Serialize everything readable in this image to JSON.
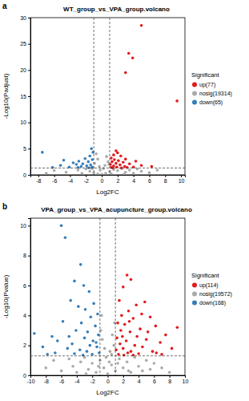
{
  "chart_data": [
    {
      "type": "scatter",
      "panel_label": "a",
      "title": "WT_group_vs_VPA_group.volcano",
      "x_label": "Log2FC",
      "y_label": "-Log10(Padjust)",
      "legend_title": "Significant",
      "legend": "right",
      "xlim": [
        -9,
        10.5
      ],
      "xticks": [
        -8,
        -6,
        -4,
        -2,
        0,
        2,
        4,
        6,
        8,
        10
      ],
      "ylim": [
        0,
        30
      ],
      "yticks": [
        0,
        5,
        10,
        15,
        20,
        25,
        30
      ],
      "thresholds": {
        "x": [
          -1,
          1
        ],
        "y": 1.3
      },
      "series": [
        {
          "name": "up(77)",
          "color": "#e41a1c",
          "x": [
            5.0,
            3.4,
            3.9,
            3.0,
            9.5,
            1.8,
            2.0,
            1.5,
            2.4,
            1.2,
            3.0,
            1.6,
            2.1,
            4.3,
            1.3,
            2.7,
            1.8,
            3.5,
            1.1,
            2.3,
            5.0,
            1.5,
            2.9,
            1.9,
            4.0,
            1.2,
            3.2,
            6.3,
            2.5,
            1.4
          ],
          "values": [
            28.5,
            23.2,
            22.3,
            19.5,
            14.1,
            4.6,
            4.2,
            3.8,
            3.6,
            3.2,
            3.0,
            2.9,
            2.7,
            2.6,
            2.5,
            2.4,
            2.2,
            2.1,
            2.0,
            1.9,
            1.8,
            1.7,
            1.6,
            1.5,
            1.5,
            1.4,
            1.4,
            1.6,
            1.35,
            1.35
          ]
        },
        {
          "name": "nosig(19314)",
          "color": "#aaaaaa",
          "x": [
            -0.7,
            -0.5,
            0.6,
            0.8,
            -0.9,
            0.4,
            -0.3,
            0.9,
            -6,
            -4.5,
            -3,
            -2,
            -1.5,
            -1,
            -0.5,
            0,
            0.5,
            1,
            1.5,
            2,
            2.5,
            3,
            3.5,
            4,
            4.5,
            5,
            6,
            7,
            -7,
            -2.5,
            1.2,
            -0.2,
            0.2,
            -1.2,
            2.8
          ],
          "values": [
            4.0,
            3.0,
            3.5,
            2.5,
            2.2,
            1.8,
            1.6,
            2.0,
            0.8,
            0.5,
            0.9,
            1.1,
            0.7,
            0.4,
            0.2,
            0.1,
            0.3,
            0.6,
            1.0,
            0.8,
            1.2,
            0.5,
            0.9,
            0.3,
            1.1,
            0.7,
            0.4,
            0.9,
            0.3,
            0.3,
            0.2,
            0.9,
            1.2,
            1.2,
            0.1
          ]
        },
        {
          "name": "down(65)",
          "color": "#377eb8",
          "x": [
            -7.5,
            -4.8,
            -3.6,
            -1.3,
            -1.1,
            -1.5,
            -2.1,
            -1.2,
            -2.9,
            -1.7,
            -3.2,
            -2.4,
            -1.4,
            -5.2,
            -1.9,
            -2.6,
            -1.2,
            -4.1,
            -3.0,
            -1.6,
            -6.2
          ],
          "values": [
            4.3,
            2.8,
            2.3,
            5.0,
            4.3,
            3.6,
            3.1,
            2.9,
            2.6,
            2.5,
            2.0,
            2.1,
            1.9,
            1.8,
            1.7,
            1.6,
            1.5,
            1.5,
            1.4,
            1.35,
            1.4
          ]
        }
      ]
    },
    {
      "type": "scatter",
      "panel_label": "b",
      "title": "VPA_group_vs_VPA_acupuncture_group.volcano",
      "x_label": "Log2FC",
      "y_label": "-Log10(Pvalue)",
      "legend_title": "Significant",
      "legend": "right",
      "xlim": [
        -10,
        10
      ],
      "xticks": [
        -10,
        -8,
        -6,
        -4,
        -2,
        0,
        2,
        4,
        6,
        8,
        10
      ],
      "ylim": [
        0,
        10.5
      ],
      "yticks": [
        0,
        2,
        4,
        6,
        8,
        10
      ],
      "thresholds": {
        "x": [
          -1,
          1
        ],
        "y": 1.3
      },
      "series": [
        {
          "name": "up(114)",
          "color": "#e41a1c",
          "x": [
            2.5,
            3.0,
            2.0,
            4.8,
            1.5,
            3.7,
            2.7,
            1.8,
            5.5,
            3.3,
            1.3,
            2.2,
            6.2,
            9.0,
            4.2,
            1.7,
            2.9,
            7.5,
            3.8,
            1.2,
            5.0,
            2.4,
            6.8,
            1.6,
            3.5,
            4.5,
            2.0,
            8.3,
            1.1,
            3.0,
            5.8,
            2.6,
            4.0,
            1.4,
            7.0,
            2.1,
            3.3,
            6.3,
            5.2,
            1.9,
            2.8,
            4.4
          ],
          "values": [
            6.7,
            6.4,
            5.9,
            4.9,
            5.0,
            4.7,
            4.3,
            4.0,
            3.9,
            3.8,
            3.5,
            3.4,
            3.3,
            3.2,
            3.1,
            3.0,
            2.9,
            2.7,
            2.6,
            2.5,
            2.4,
            2.3,
            2.2,
            2.1,
            2.0,
            1.9,
            1.8,
            1.8,
            1.7,
            1.6,
            1.6,
            1.5,
            1.45,
            1.4,
            1.4,
            1.35,
            1.35,
            1.5,
            2.9,
            2.6,
            3.6,
            4.1
          ]
        },
        {
          "name": "nosig(19572)",
          "color": "#aaaaaa",
          "x": [
            -0.9,
            -0.7,
            0.6,
            0.8,
            -0.4,
            0.3,
            0.9,
            -0.8,
            0.5,
            -8,
            -7,
            -6,
            -5,
            -4.5,
            -4,
            -3.5,
            -3,
            -2.5,
            -2,
            -1.5,
            -1,
            -0.5,
            0,
            0.5,
            1,
            1.5,
            2,
            2.5,
            3,
            3.5,
            4,
            4.5,
            5,
            5.5,
            6,
            7,
            8,
            -0.2,
            0.2,
            -1.2,
            1.3,
            -2.8,
            2.7
          ],
          "values": [
            3.0,
            2.4,
            2.7,
            2.0,
            1.8,
            1.6,
            3.5,
            4.0,
            1.4,
            0.5,
            1.0,
            0.3,
            1.1,
            0.6,
            0.2,
            0.9,
            1.2,
            0.4,
            0.8,
            0.2,
            1.0,
            0.5,
            0.1,
            0.7,
            0.3,
            1.1,
            0.5,
            0.9,
            0.2,
            1.2,
            0.6,
            0.3,
            1.0,
            0.4,
            0.8,
            0.5,
            0.2,
            1.2,
            0.9,
            0.6,
            0.8,
            0.1,
            0.3
          ]
        },
        {
          "name": "down(168)",
          "color": "#377eb8",
          "x": [
            -6.0,
            -5.5,
            -3.5,
            -4.3,
            -3.1,
            -2.4,
            -4.8,
            -1.8,
            -3.8,
            -2.9,
            -1.3,
            -5.8,
            -2.2,
            -3.4,
            -1.6,
            -7.2,
            -9.5,
            -4.1,
            -2.6,
            -1.2,
            -6.5,
            -3.0,
            -1.9,
            -4.6,
            -2.3,
            -8.4,
            -1.4,
            -5.2,
            -3.6,
            -2.7,
            -1.1,
            -6.8,
            -4.3,
            -2.0,
            -7.8,
            -3.2,
            -1.5,
            -5.0
          ],
          "values": [
            10.0,
            9.2,
            7.4,
            6.3,
            6.0,
            5.6,
            5.0,
            4.8,
            4.6,
            4.4,
            4.1,
            3.6,
            3.9,
            3.5,
            3.3,
            2.6,
            2.8,
            3.0,
            2.9,
            2.7,
            2.3,
            2.5,
            2.3,
            2.1,
            2.0,
            1.9,
            1.9,
            1.8,
            1.7,
            1.6,
            1.5,
            1.5,
            1.45,
            1.4,
            1.4,
            1.35,
            2.2,
            2.6
          ]
        }
      ]
    }
  ]
}
